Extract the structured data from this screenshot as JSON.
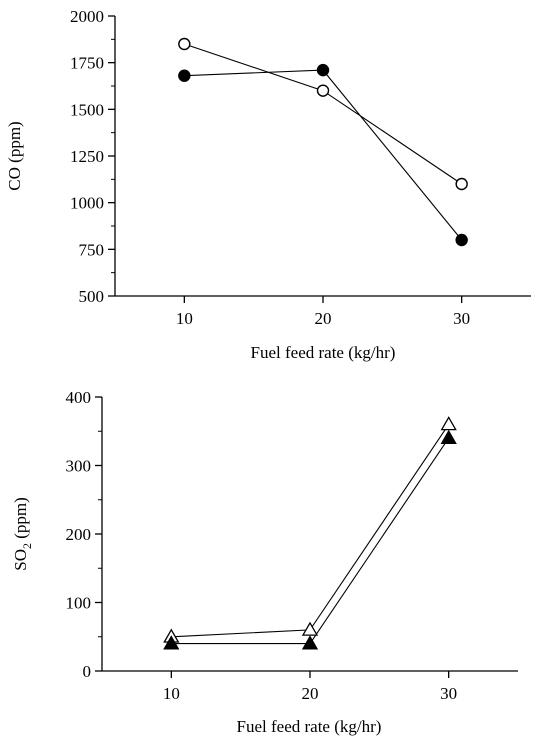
{
  "chart_data": [
    {
      "type": "line",
      "title": "",
      "xlabel": "Fuel feed rate (kg/hr)",
      "ylabel": "CO (ppm)",
      "xlim": [
        5,
        35
      ],
      "ylim": [
        500,
        2000
      ],
      "xticks": [
        10,
        20,
        30
      ],
      "yticks": [
        500,
        750,
        1000,
        1250,
        1500,
        1750,
        2000
      ],
      "xtick_labels": [
        "10",
        "20",
        "30"
      ],
      "ytick_labels": [
        "500",
        "750",
        "1000",
        "1250",
        "1500",
        "1750",
        "2000"
      ],
      "grid": false,
      "legend": "none",
      "series": [
        {
          "marker": "open-circle",
          "x": [
            10,
            20,
            30
          ],
          "values": [
            1850,
            1600,
            1100
          ]
        },
        {
          "marker": "filled-circle",
          "x": [
            10,
            20,
            30
          ],
          "values": [
            1680,
            1710,
            800
          ]
        }
      ]
    },
    {
      "type": "line",
      "title": "",
      "xlabel": "Fuel feed rate (kg/hr)",
      "ylabel": "SO",
      "ylabel_subscript": "2",
      "ylabel_suffix": " (ppm)",
      "xlim": [
        5,
        35
      ],
      "ylim": [
        0,
        400
      ],
      "xticks": [
        10,
        20,
        30
      ],
      "yticks": [
        0,
        100,
        200,
        300,
        400
      ],
      "xtick_labels": [
        "10",
        "20",
        "30"
      ],
      "ytick_labels": [
        "0",
        "100",
        "200",
        "300",
        "400"
      ],
      "grid": false,
      "legend": "none",
      "series": [
        {
          "marker": "open-triangle",
          "x": [
            10,
            20,
            30
          ],
          "values": [
            50,
            60,
            360
          ]
        },
        {
          "marker": "filled-triangle",
          "x": [
            10,
            20,
            30
          ],
          "values": [
            40,
            40,
            340
          ]
        }
      ]
    }
  ]
}
